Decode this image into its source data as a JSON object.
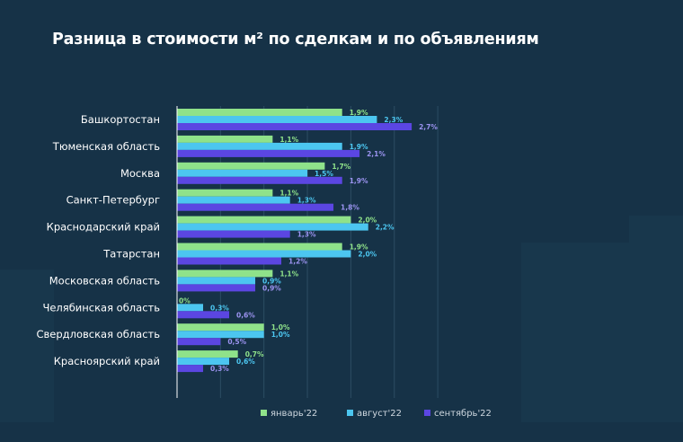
{
  "title": "Разница в стоимости м² по сделкам и по объявлениям",
  "chart_data": {
    "type": "bar",
    "orientation": "horizontal",
    "title": "Разница в стоимости м² по сделкам и по объявлениям",
    "categories": [
      "Башкортостан",
      "Тюменская область",
      "Москва",
      "Санкт-Петербург",
      "Краснодарский край",
      "Татарстан",
      "Московская область",
      "Челябинская область",
      "Свердловская область",
      "Красноярский край"
    ],
    "series": [
      {
        "name": "январь'22",
        "color": "#8fe28a",
        "values": [
          1.9,
          1.1,
          1.7,
          1.1,
          2.0,
          1.9,
          1.1,
          0,
          1.0,
          0.7
        ],
        "labels": [
          "1,9%",
          "1,1%",
          "1,7%",
          "1,1%",
          "2,0%",
          "1,9%",
          "1,1%",
          "0%",
          "1,0%",
          "0,7%"
        ]
      },
      {
        "name": "август'22",
        "color": "#4cc6f0",
        "values": [
          2.3,
          1.9,
          1.5,
          1.3,
          2.2,
          2.0,
          0.9,
          0.3,
          1.0,
          0.6
        ],
        "labels": [
          "2,3%",
          "1,9%",
          "1,5%",
          "1,3%",
          "2,2%",
          "2,0%",
          "0,9%",
          "0,3%",
          "1,0%",
          "0,6%"
        ]
      },
      {
        "name": "сентябрь'22",
        "color": "#5b46e2",
        "values": [
          2.7,
          2.1,
          1.9,
          1.8,
          1.3,
          1.2,
          0.9,
          0.6,
          0.5,
          0.3
        ],
        "labels": [
          "2,7%",
          "2,1%",
          "1,9%",
          "1,8%",
          "1,3%",
          "1,2%",
          "0,9%",
          "0,6%",
          "0,5%",
          "0,3%"
        ]
      }
    ],
    "xlim": [
      0,
      3
    ],
    "grid": true,
    "legend": "bottom"
  }
}
